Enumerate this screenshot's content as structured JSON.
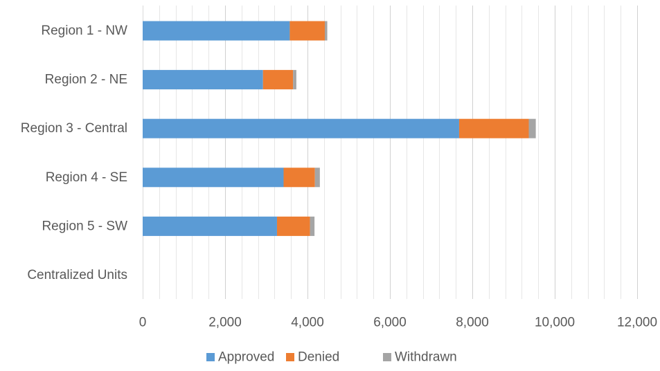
{
  "chart_data": {
    "type": "bar",
    "orientation": "horizontal",
    "stacked": true,
    "categories": [
      "Region 1 - NW",
      "Region 2 - NE",
      "Region 3 - Central",
      "Region 4 - SE",
      "Region 5 - SW",
      "Centralized Units"
    ],
    "series": [
      {
        "name": "Approved",
        "color": "#5B9BD5",
        "values": [
          3570,
          2920,
          7680,
          3420,
          3260,
          0
        ]
      },
      {
        "name": "Denied",
        "color": "#ED7D31",
        "values": [
          850,
          730,
          1690,
          760,
          800,
          0
        ]
      },
      {
        "name": "Withdrawn",
        "color": "#A5A5A5",
        "values": [
          60,
          80,
          170,
          120,
          110,
          0
        ]
      }
    ],
    "xlim": [
      0,
      12000
    ],
    "x_ticks": [
      0,
      2000,
      4000,
      6000,
      8000,
      10000,
      12000
    ],
    "x_tick_labels": [
      "0",
      "2,000",
      "4,000",
      "6,000",
      "8,000",
      "10,000",
      "12,000"
    ],
    "minor_gridline_step": 400,
    "grid": true,
    "legend_position": "bottom",
    "title": "",
    "xlabel": "",
    "ylabel": ""
  }
}
